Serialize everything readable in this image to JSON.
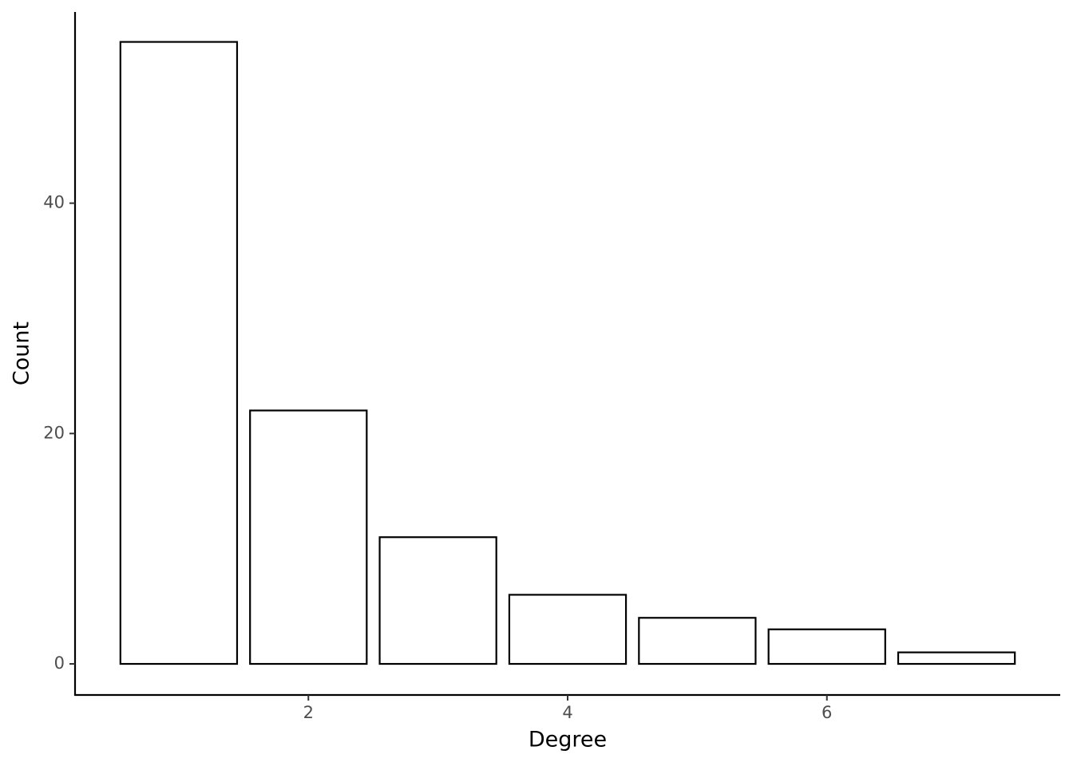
{
  "chart_data": {
    "type": "bar",
    "x_label": "Degree",
    "y_label": "Count",
    "x": [
      1,
      2,
      3,
      4,
      5,
      6,
      7
    ],
    "values": [
      54,
      22,
      11,
      6,
      4,
      3,
      1
    ],
    "color": "#ffffff",
    "edge_color": "#000000",
    "xlim": [
      0.2,
      7.8
    ],
    "ylim": [
      -2.7,
      56.6
    ],
    "xticks": [
      2,
      4,
      6
    ],
    "yticks": [
      0,
      20,
      40
    ],
    "grid": false
  }
}
